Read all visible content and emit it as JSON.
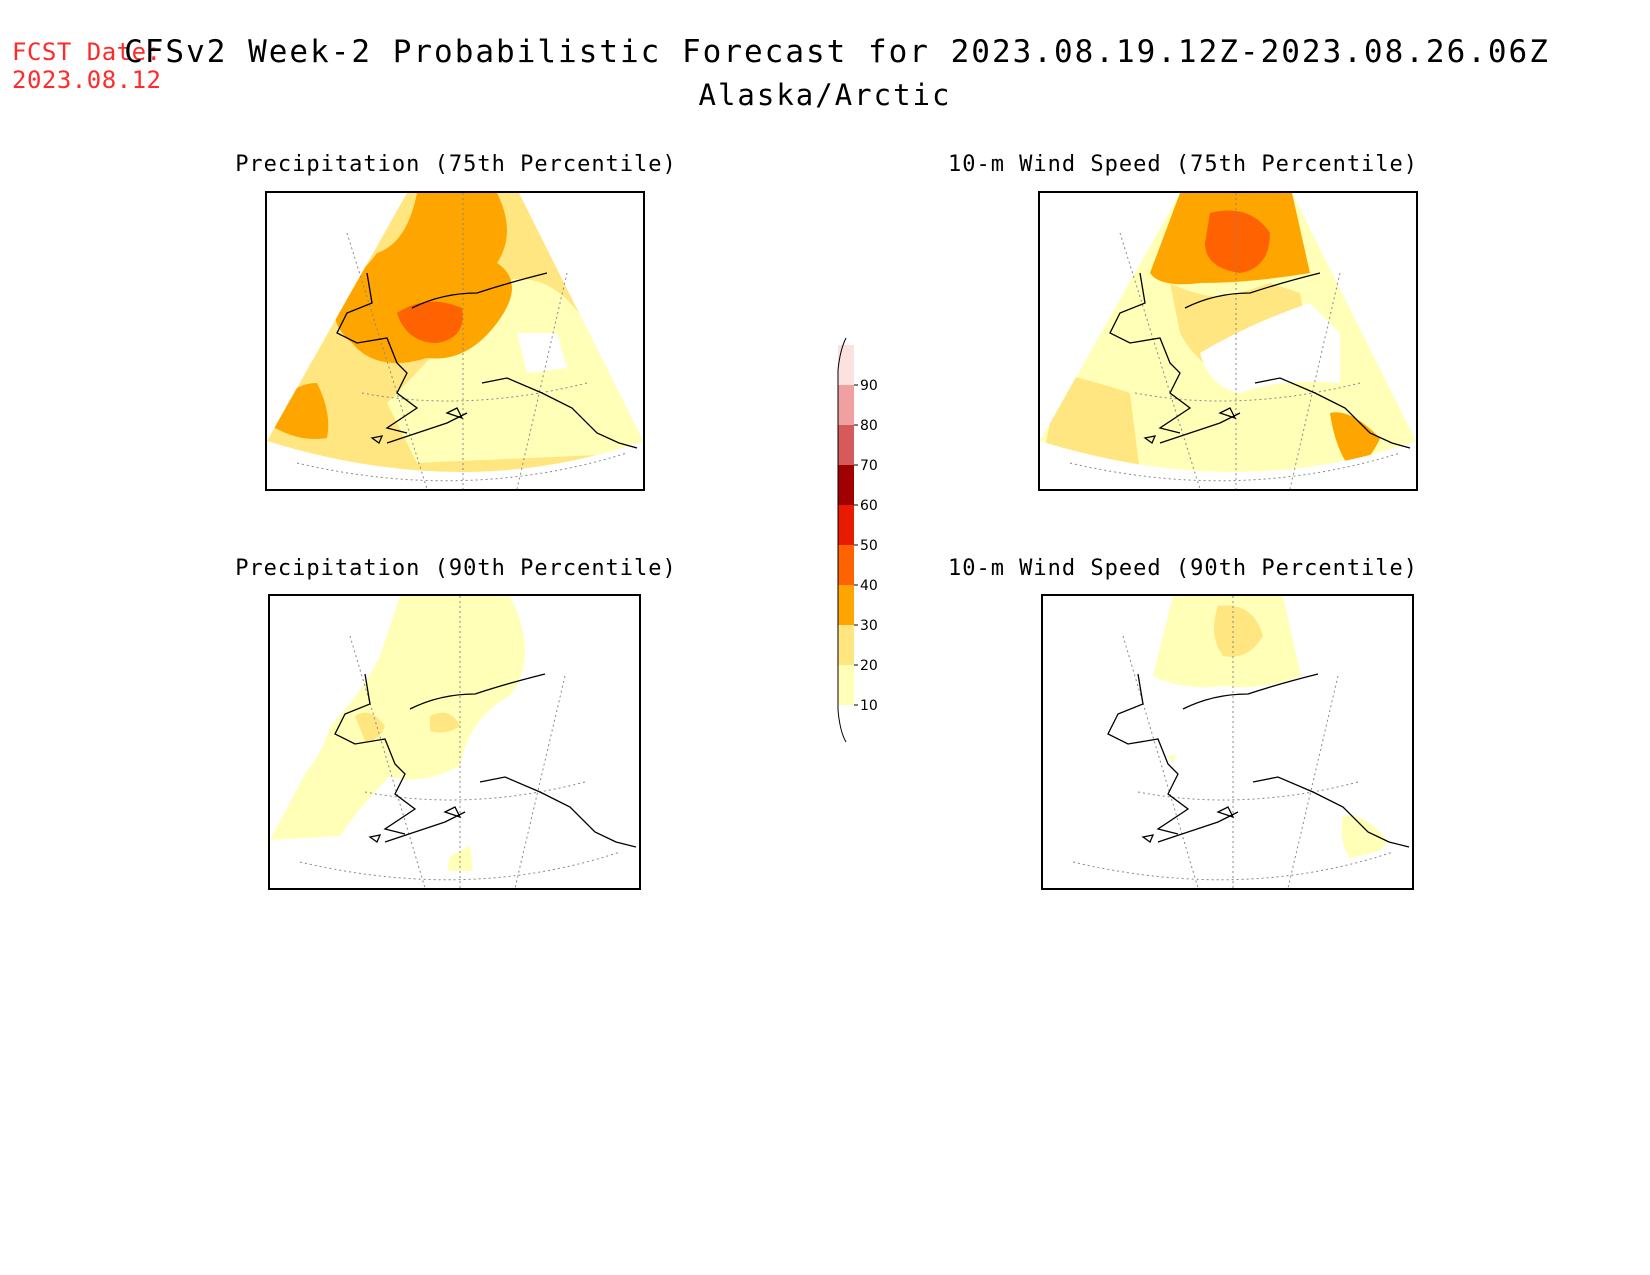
{
  "header": {
    "fcst_label": "FCST Date:",
    "fcst_date": "2023.08.12",
    "title": "CFSv2 Week-2 Probabilistic Forecast for 2023.08.19.12Z-2023.08.26.06Z",
    "subtitle": "Alaska/Arctic"
  },
  "panels": [
    {
      "title": "Precipitation (75th Percentile)"
    },
    {
      "title": "10-m Wind Speed (75th Percentile)"
    },
    {
      "title": "Precipitation (90th Percentile)"
    },
    {
      "title": "10-m Wind Speed (90th Percentile)"
    }
  ],
  "colorbar": {
    "levels": [
      "10",
      "20",
      "30",
      "40",
      "50",
      "60",
      "70",
      "80",
      "90"
    ],
    "colors": [
      "#ffffb8",
      "#ffe680",
      "#ffa500",
      "#ff6200",
      "#e81a00",
      "#a00000",
      "#d65a5a",
      "#f0a0a0",
      "#fde0e0"
    ]
  }
}
